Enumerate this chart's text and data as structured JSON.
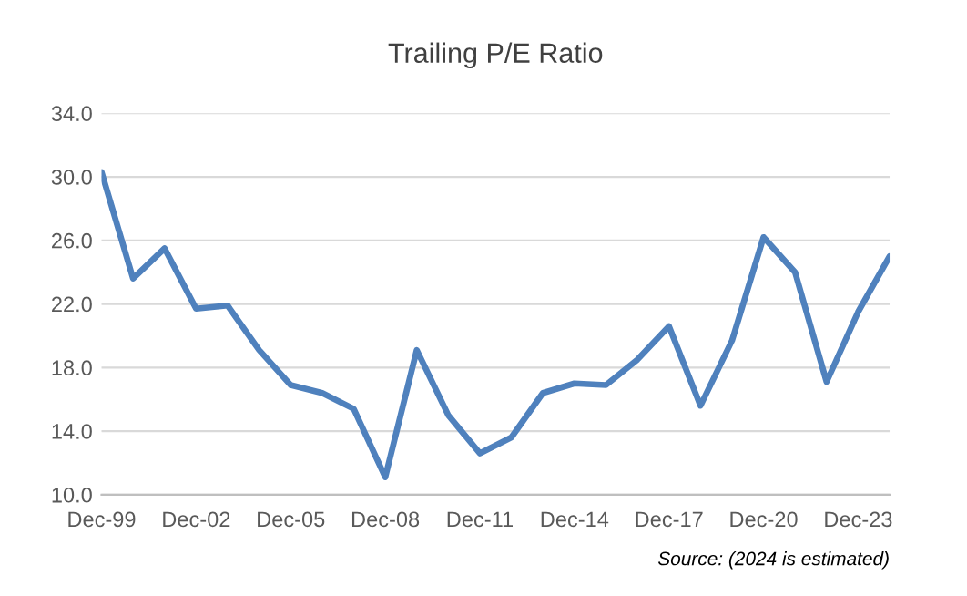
{
  "chart_data": {
    "type": "line",
    "title": "Trailing P/E Ratio",
    "categories": [
      "Dec-99",
      null,
      null,
      "Dec-02",
      null,
      null,
      "Dec-05",
      null,
      null,
      "Dec-08",
      null,
      null,
      "Dec-11",
      null,
      null,
      "Dec-14",
      null,
      null,
      "Dec-17",
      null,
      null,
      "Dec-20",
      null,
      null,
      "Dec-23",
      null
    ],
    "series": [
      {
        "color": "#4f81bd",
        "values": [
          30.3,
          23.6,
          25.5,
          21.7,
          21.9,
          19.1,
          16.9,
          16.4,
          15.4,
          11.1,
          19.1,
          15.0,
          12.6,
          13.6,
          16.4,
          17.0,
          16.9,
          18.5,
          20.6,
          15.6,
          19.7,
          26.2,
          24.0,
          17.1,
          21.5,
          25.0
        ]
      }
    ],
    "ylim": [
      10,
      34
    ],
    "yticks": [
      {
        "value": 10,
        "label": "10.0"
      },
      {
        "value": 14,
        "label": "14.0"
      },
      {
        "value": 18,
        "label": "18.0"
      },
      {
        "value": 22,
        "label": "22.0"
      },
      {
        "value": 26,
        "label": "26.0"
      },
      {
        "value": 30,
        "label": "30.0"
      },
      {
        "value": 34,
        "label": "34.0"
      }
    ],
    "grid": "y",
    "marker": "none",
    "line_style": "solid",
    "legend": false,
    "annotations": [
      "Source: (2024 is estimated)"
    ]
  }
}
